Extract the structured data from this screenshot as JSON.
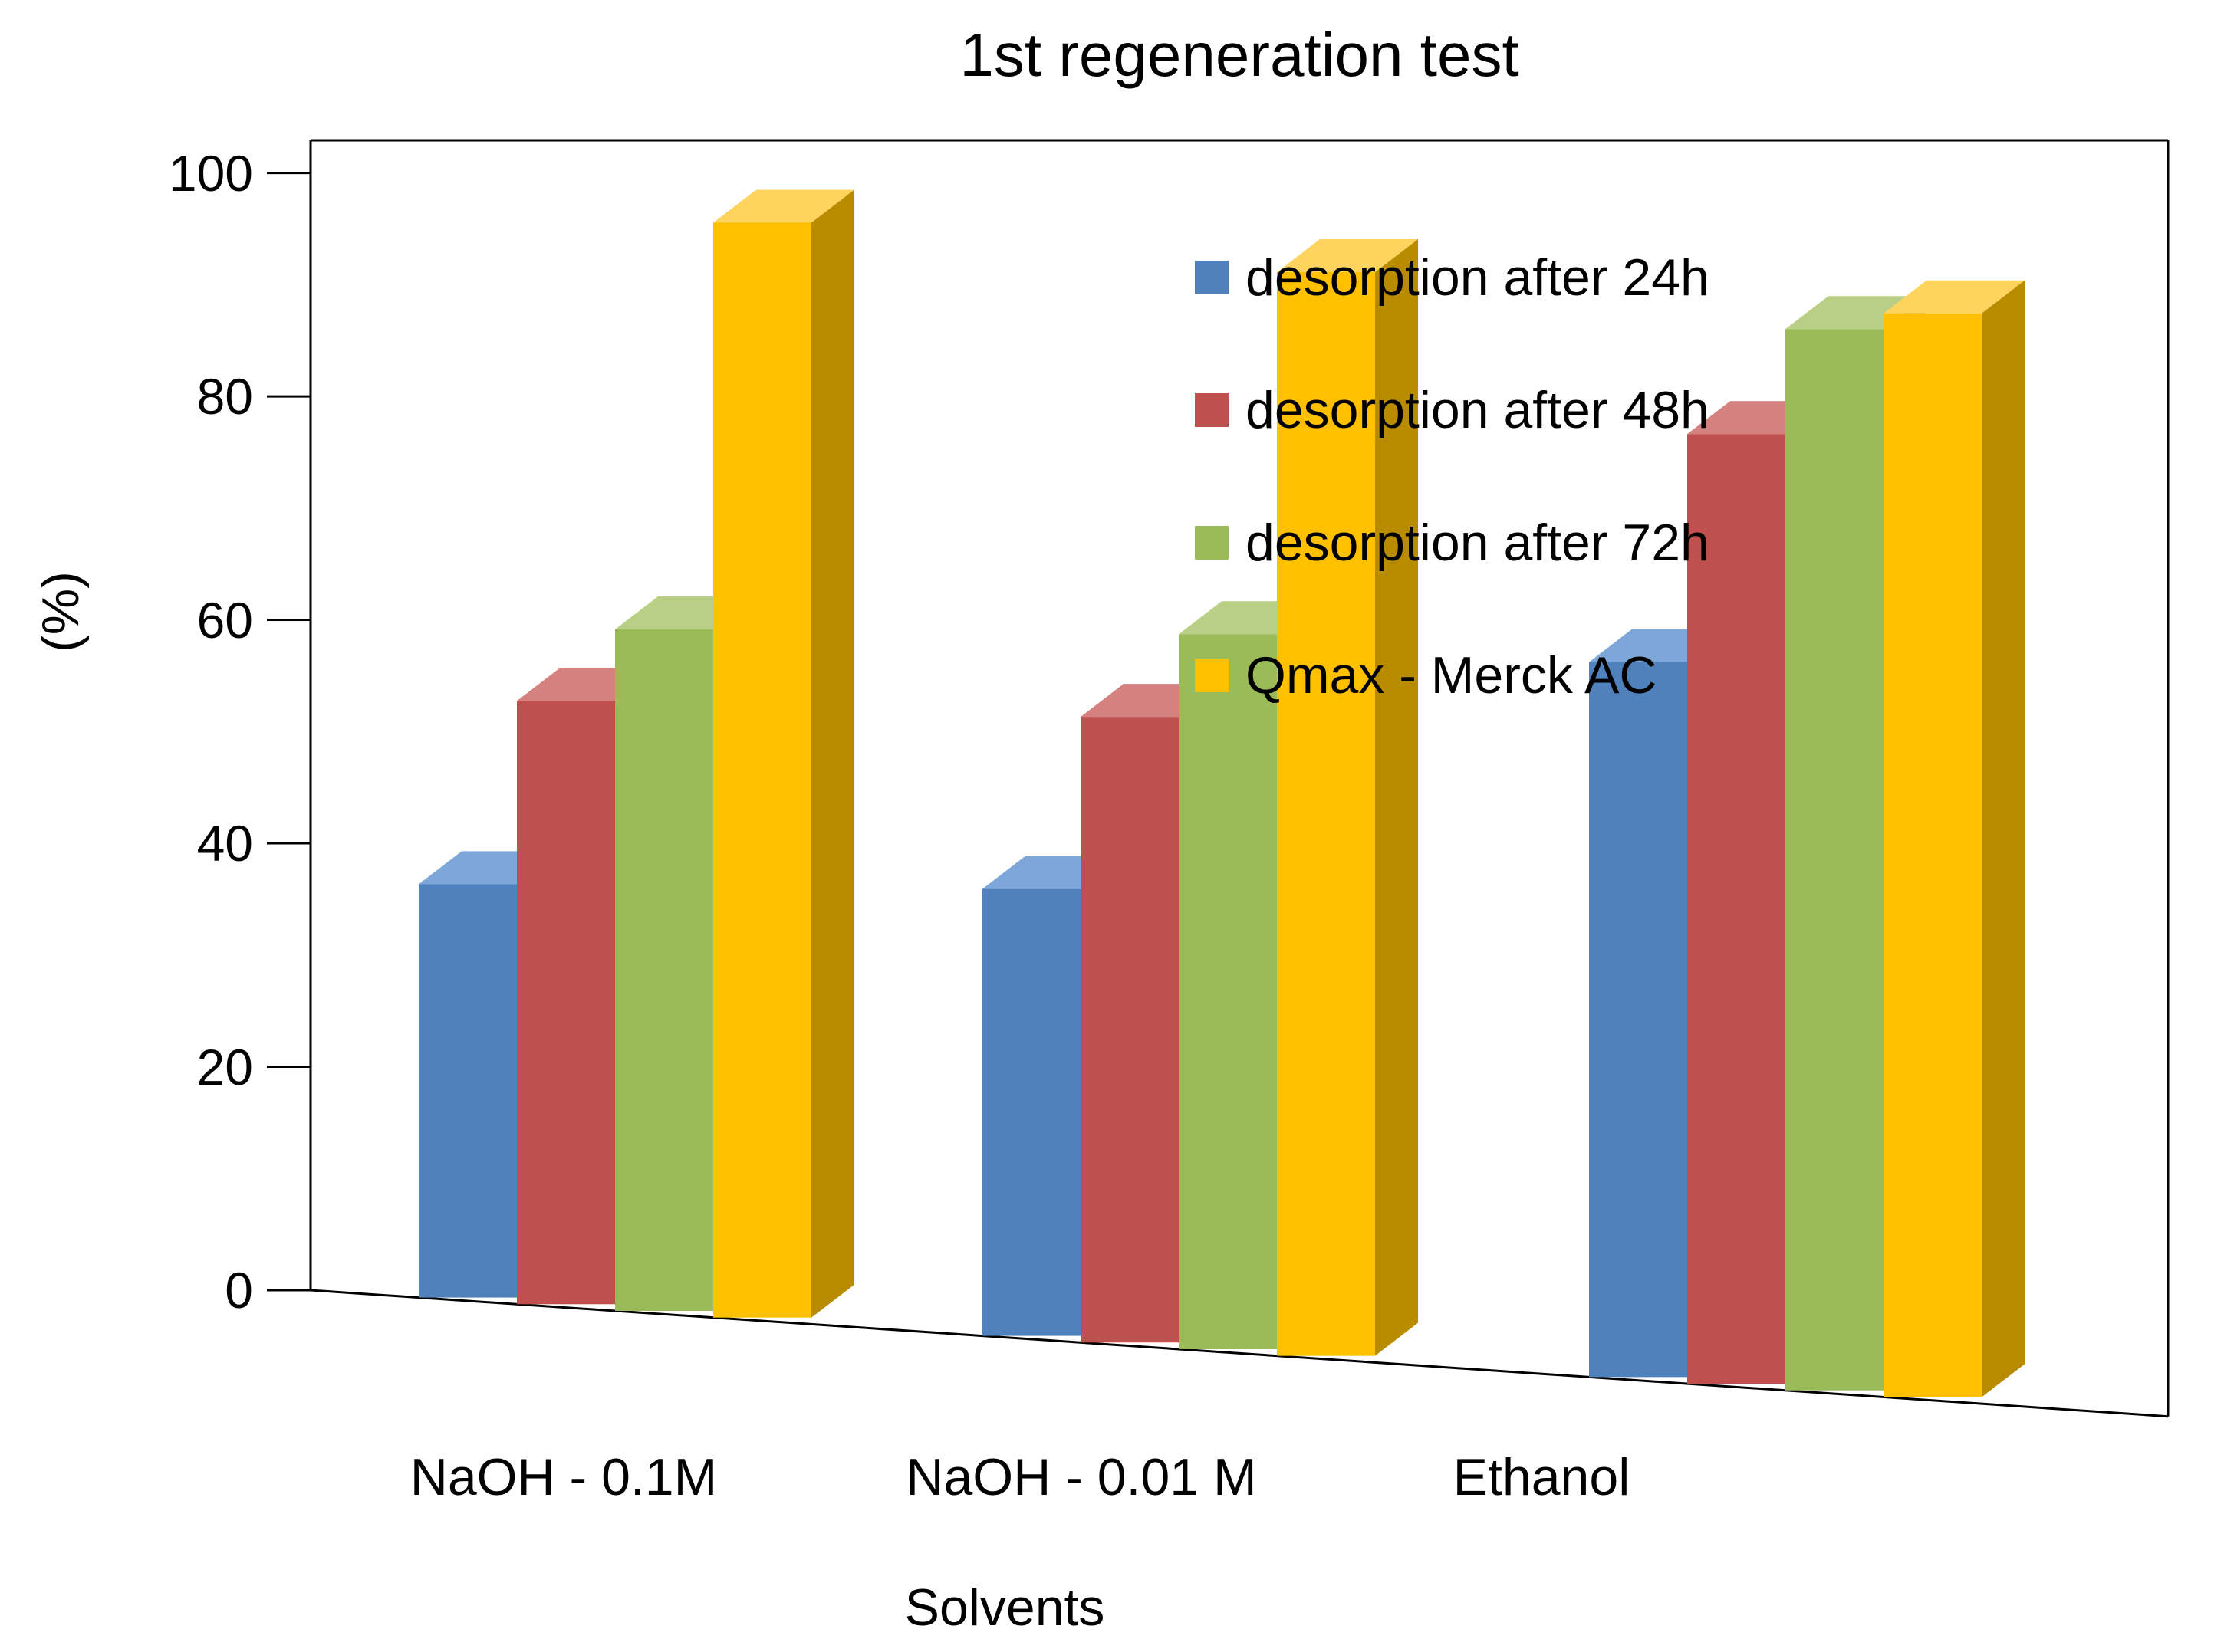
{
  "chart_data": {
    "type": "bar",
    "subtype": "3d-clustered-column",
    "title": "1st regeneration test",
    "xlabel": "Solvents",
    "ylabel": "(%)",
    "ylim": [
      0,
      100
    ],
    "yticks": [
      0,
      20,
      40,
      60,
      80,
      100
    ],
    "grid": false,
    "legend_position": "inside-top-right",
    "categories": [
      "NaOH - 0.1M",
      "NaOH - 0.01 M",
      "Ethanol"
    ],
    "series": [
      {
        "name": "desorption after 24h",
        "color": "#4F81BD",
        "color_top": "#7DA7D8",
        "color_side": "#38618F",
        "values": [
          37,
          40,
          64
        ]
      },
      {
        "name": "desorption after 48h",
        "color": "#C0504D",
        "color_top": "#D4817F",
        "color_side": "#8C3836",
        "values": [
          54,
          56,
          85
        ]
      },
      {
        "name": "desorption after 72h",
        "color": "#9BBB59",
        "color_top": "#B8CF85",
        "color_side": "#71893F",
        "values": [
          61,
          64,
          95
        ]
      },
      {
        "name": "Qmax - Merck AC",
        "color": "#FFC000",
        "color_top": "#FFD45E",
        "color_side": "#B98C00",
        "values": [
          98,
          97,
          97
        ]
      }
    ],
    "frame_color": "#000000",
    "background_color": "#FFFFFF"
  }
}
